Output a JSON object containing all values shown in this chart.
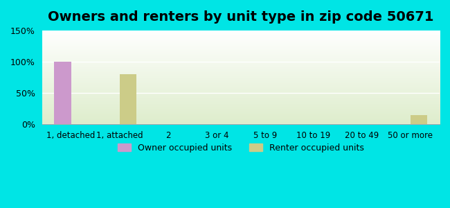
{
  "title": "Owners and renters by unit type in zip code 50671",
  "categories": [
    "1, detached",
    "1, attached",
    "2",
    "3 or 4",
    "5 to 9",
    "10 to 19",
    "20 to 49",
    "50 or more"
  ],
  "owner_values": [
    100,
    0,
    0,
    0,
    0,
    0,
    0,
    0
  ],
  "renter_values": [
    0,
    80,
    0,
    0,
    0,
    0,
    0,
    15
  ],
  "owner_color": "#cc99cc",
  "renter_color": "#cccc88",
  "ylim": [
    0,
    150
  ],
  "yticks": [
    0,
    50,
    100,
    150
  ],
  "ytick_labels": [
    "0%",
    "50%",
    "100%",
    "150%"
  ],
  "background_outer": "#00e5e5",
  "background_inner_top": "#ffffff",
  "background_inner_bottom": "#ddeecc",
  "legend_owner": "Owner occupied units",
  "legend_renter": "Renter occupied units",
  "title_fontsize": 14,
  "bar_width": 0.35
}
